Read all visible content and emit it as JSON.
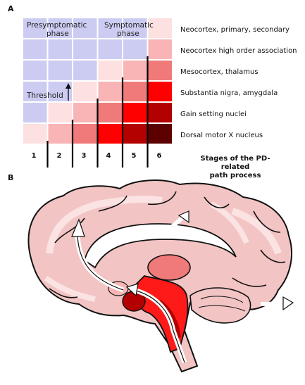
{
  "panel_a": {
    "letter": "A",
    "phases": {
      "presymptomatic_line1": "Presymptomatic",
      "presymptomatic_line2": "phase",
      "symptomatic_line1": "Symptomatic",
      "symptomatic_line2": "phase"
    },
    "threshold_label": "Threshold",
    "rows": [
      {
        "label": "Neocortex, primary, secondary"
      },
      {
        "label": "Neocortex high order association"
      },
      {
        "label": "Mesocortex, thalamus"
      },
      {
        "label": "Substantia nigra, amygdala"
      },
      {
        "label": "Gain setting nuclei"
      },
      {
        "label": "Dorsal motor X nucleus"
      }
    ],
    "stages": [
      "1",
      "2",
      "3",
      "4",
      "5",
      "6"
    ],
    "axis_title_line1": "Stages of the PD-related",
    "axis_title_line2": "path process",
    "colors": {
      "presymptomatic": "#ccccf2",
      "level1": "#fde0e0",
      "level2": "#f9b5b5",
      "level3": "#f07a7a",
      "level4": "#ff0000",
      "level5": "#b30000",
      "level6": "#5c0000"
    }
  },
  "panel_b": {
    "letter": "B",
    "colors": {
      "cortex": "#f2c4c4",
      "gyri_light": "#fbe3e3",
      "outline": "#111111",
      "brainstem_dark": "#b30000",
      "brainstem_mid": "#ff1a1a",
      "thalamus": "#f07a7a"
    },
    "icons": [
      "brain-sagittal-icon",
      "spread-arrow-icon"
    ]
  }
}
